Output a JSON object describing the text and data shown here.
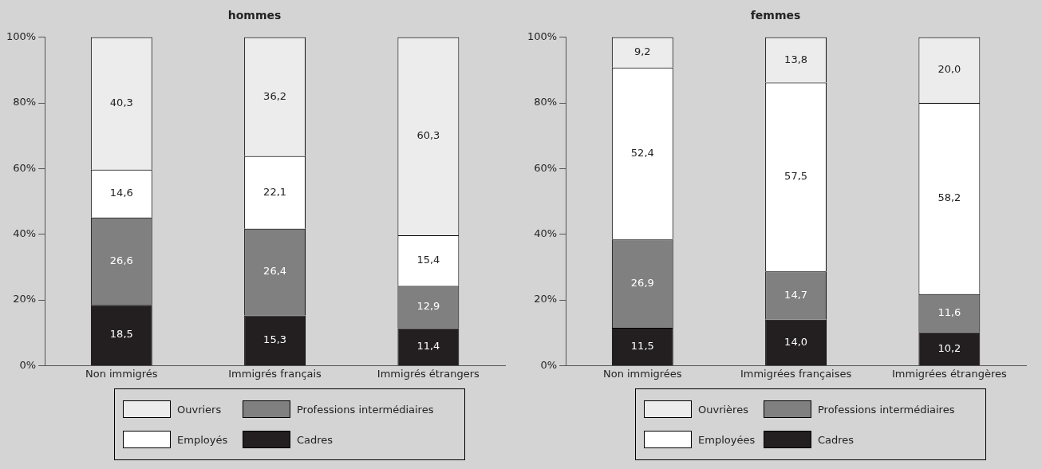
{
  "chart_data": [
    {
      "type": "bar",
      "title": "hommes",
      "stacked": true,
      "grid": false,
      "legend": "bottom",
      "categories": [
        "Non immigrés",
        "Immigrés français",
        "Immigrés étrangers"
      ],
      "series": [
        {
          "name": "Cadres",
          "color": "#231f20",
          "values": [
            18.5,
            15.3,
            11.4
          ],
          "value_labels": [
            "18,5",
            "15,3",
            "11,4"
          ]
        },
        {
          "name": "Professions intermédiaires",
          "color": "#808080",
          "values": [
            26.6,
            26.4,
            12.9
          ],
          "value_labels": [
            "26,6",
            "26,4",
            "12,9"
          ]
        },
        {
          "name": "Employés",
          "color": "#ffffff",
          "values": [
            14.6,
            22.1,
            15.4
          ],
          "value_labels": [
            "14,6",
            "22,1",
            "15,4"
          ]
        },
        {
          "name": "Ouvriers",
          "color": "#ececec",
          "values": [
            40.3,
            36.2,
            60.3
          ],
          "value_labels": [
            "40,3",
            "36,2",
            "60,3"
          ]
        }
      ],
      "ylim": [
        0,
        100
      ],
      "yticks": [
        {
          "value": 0,
          "label": "0%"
        },
        {
          "value": 20,
          "label": "20%"
        },
        {
          "value": 40,
          "label": "40%"
        },
        {
          "value": 60,
          "label": "60%"
        },
        {
          "value": 80,
          "label": "80%"
        },
        {
          "value": 100,
          "label": "100%"
        }
      ]
    },
    {
      "type": "bar",
      "title": "femmes",
      "stacked": true,
      "grid": false,
      "legend": "bottom",
      "categories": [
        "Non immigrées",
        "Immigrées françaises",
        "Immigrées étrangères"
      ],
      "series": [
        {
          "name": "Cadres",
          "color": "#231f20",
          "values": [
            11.5,
            14.0,
            10.2
          ],
          "value_labels": [
            "11,5",
            "14,0",
            "10,2"
          ]
        },
        {
          "name": "Professions intermédiaires",
          "color": "#808080",
          "values": [
            26.9,
            14.7,
            11.6
          ],
          "value_labels": [
            "26,9",
            "14,7",
            "11,6"
          ]
        },
        {
          "name": "Employées",
          "color": "#ffffff",
          "values": [
            52.4,
            57.5,
            58.2
          ],
          "value_labels": [
            "52,4",
            "57,5",
            "58,2"
          ]
        },
        {
          "name": "Ouvrières",
          "color": "#ececec",
          "values": [
            9.2,
            13.8,
            20.0
          ],
          "value_labels": [
            "9,2",
            "13,8",
            "20,0"
          ]
        }
      ],
      "ylim": [
        0,
        100
      ],
      "yticks": [
        {
          "value": 0,
          "label": "0%"
        },
        {
          "value": 20,
          "label": "20%"
        },
        {
          "value": 40,
          "label": "40%"
        },
        {
          "value": 60,
          "label": "60%"
        },
        {
          "value": 80,
          "label": "80%"
        },
        {
          "value": 100,
          "label": "100%"
        }
      ]
    }
  ]
}
